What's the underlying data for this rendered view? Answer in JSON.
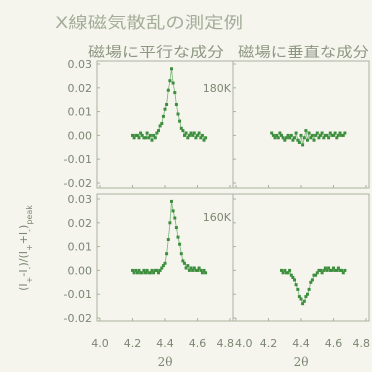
{
  "figure": {
    "title": "X線磁気散乱の測定例",
    "column_titles": [
      "磁場に平行な成分",
      "磁場に垂直な成分"
    ],
    "ylabel_parts": [
      "(I",
      "+",
      "-I",
      "-",
      ")/(I",
      "+",
      "+I",
      "-",
      ")",
      "peak"
    ],
    "colors": {
      "background": "#f5f5ee",
      "title": "#a3ad98",
      "subtitle": "#8d9782",
      "text": "#7b8772",
      "axes": "#aab39e",
      "marker": "#3d8f3d",
      "line": "#79b379"
    }
  },
  "chart_data": [
    {
      "type": "scatter",
      "label": "180K",
      "xlim": [
        4.0,
        4.8
      ],
      "ylim": [
        -0.02,
        0.03
      ],
      "grid": false,
      "x_ticks": [
        4.0,
        4.2,
        4.4,
        4.6,
        4.8
      ],
      "y_ticks": [
        0.03,
        0.02,
        0.01,
        0.0,
        -0.01,
        -0.02
      ],
      "y_tick_labels": [
        "0.03",
        "0.02",
        "0.01",
        "0.00",
        "-0.01",
        "-0.02"
      ],
      "x": [
        4.2,
        4.21,
        4.22,
        4.23,
        4.24,
        4.25,
        4.26,
        4.27,
        4.28,
        4.29,
        4.3,
        4.31,
        4.32,
        4.33,
        4.34,
        4.35,
        4.36,
        4.37,
        4.38,
        4.39,
        4.4,
        4.41,
        4.42,
        4.43,
        4.44,
        4.45,
        4.46,
        4.47,
        4.48,
        4.49,
        4.5,
        4.51,
        4.52,
        4.53,
        4.54,
        4.55,
        4.56,
        4.57,
        4.58,
        4.59,
        4.6,
        4.61,
        4.62,
        4.63,
        4.64,
        4.65
      ],
      "y": [
        0.0,
        -0.001,
        0.0,
        0.0,
        -0.001,
        0.001,
        0.0,
        -0.001,
        -0.001,
        0.001,
        -0.001,
        0.0,
        -0.002,
        0.0,
        -0.001,
        0.001,
        0.002,
        0.004,
        0.005,
        0.008,
        0.011,
        0.013,
        0.019,
        0.023,
        0.028,
        0.022,
        0.018,
        0.013,
        0.009,
        0.006,
        0.003,
        0.002,
        0.0,
        0.001,
        -0.001,
        0.0,
        0.001,
        0.0,
        0.001,
        -0.001,
        0.0,
        0.001,
        -0.001,
        0.0,
        -0.002,
        -0.001
      ]
    },
    {
      "type": "scatter",
      "xlim": [
        4.0,
        4.8
      ],
      "ylim": [
        -0.02,
        0.03
      ],
      "grid": false,
      "x_ticks": [
        4.0,
        4.2,
        4.4,
        4.6,
        4.8
      ],
      "y_ticks": [
        0.03,
        0.02,
        0.01,
        0.0,
        -0.01,
        -0.02
      ],
      "x": [
        4.22,
        4.23,
        4.24,
        4.25,
        4.26,
        4.27,
        4.28,
        4.29,
        4.3,
        4.31,
        4.32,
        4.33,
        4.34,
        4.35,
        4.36,
        4.37,
        4.38,
        4.39,
        4.4,
        4.41,
        4.42,
        4.43,
        4.44,
        4.45,
        4.46,
        4.47,
        4.48,
        4.49,
        4.5,
        4.51,
        4.52,
        4.53,
        4.54,
        4.55,
        4.56,
        4.57,
        4.58,
        4.59,
        4.6,
        4.61,
        4.62,
        4.63,
        4.64,
        4.65,
        4.66,
        4.67
      ],
      "y": [
        0.001,
        0.0,
        -0.001,
        0.0,
        -0.001,
        0.001,
        0.0,
        -0.001,
        -0.002,
        -0.001,
        0.0,
        -0.001,
        0.0,
        -0.002,
        -0.001,
        0.001,
        -0.002,
        -0.003,
        0.0,
        -0.004,
        -0.001,
        0.002,
        -0.002,
        0.001,
        -0.001,
        0.0,
        -0.002,
        0.0,
        0.001,
        -0.001,
        0.0,
        0.001,
        -0.001,
        0.0,
        0.0,
        -0.001,
        0.001,
        0.0,
        0.0,
        0.001,
        -0.001,
        0.0,
        0.001,
        0.0,
        0.0,
        0.001
      ]
    },
    {
      "type": "scatter",
      "label": "160K",
      "xlim": [
        4.0,
        4.8
      ],
      "ylim": [
        -0.02,
        0.03
      ],
      "grid": false,
      "x_ticks": [
        4.0,
        4.2,
        4.4,
        4.6,
        4.8
      ],
      "x_tick_labels": [
        "4.0",
        "4.2",
        "4.4",
        "4.6",
        "4.8"
      ],
      "xlabel": "2θ",
      "y_ticks": [
        0.03,
        0.02,
        0.01,
        0.0,
        -0.01,
        -0.02
      ],
      "y_tick_labels": [
        "0.03",
        "0.02",
        "0.01",
        "0.00",
        "-0.01",
        "-0.02"
      ],
      "x": [
        4.2,
        4.21,
        4.22,
        4.23,
        4.24,
        4.25,
        4.26,
        4.27,
        4.28,
        4.29,
        4.3,
        4.31,
        4.32,
        4.33,
        4.34,
        4.35,
        4.36,
        4.37,
        4.38,
        4.39,
        4.4,
        4.41,
        4.42,
        4.43,
        4.44,
        4.45,
        4.46,
        4.47,
        4.48,
        4.49,
        4.5,
        4.51,
        4.52,
        4.53,
        4.54,
        4.55,
        4.56,
        4.57,
        4.58,
        4.59,
        4.6,
        4.61,
        4.62,
        4.63,
        4.64,
        4.65
      ],
      "y": [
        0.0,
        -0.001,
        0.0,
        -0.001,
        0.0,
        -0.001,
        -0.001,
        0.0,
        -0.001,
        0.0,
        -0.001,
        -0.001,
        0.0,
        -0.001,
        0.0,
        0.0,
        -0.001,
        0.0,
        0.001,
        0.002,
        0.003,
        0.007,
        0.013,
        0.02,
        0.029,
        0.025,
        0.022,
        0.018,
        0.014,
        0.011,
        0.007,
        0.004,
        0.003,
        0.001,
        0.002,
        0.0,
        0.001,
        0.0,
        0.001,
        0.0,
        0.0,
        0.001,
        0.0,
        -0.001,
        0.0,
        -0.001
      ]
    },
    {
      "type": "scatter",
      "xlim": [
        4.0,
        4.8
      ],
      "ylim": [
        -0.02,
        0.03
      ],
      "grid": false,
      "x_ticks": [
        4.0,
        4.2,
        4.4,
        4.6,
        4.8
      ],
      "x_tick_labels": [
        "4.0",
        "4.2",
        "4.4",
        "4.6",
        "4.8"
      ],
      "xlabel": "2θ",
      "y_ticks": [
        0.03,
        0.02,
        0.01,
        0.0,
        -0.01,
        -0.02
      ],
      "x": [
        4.28,
        4.29,
        4.3,
        4.31,
        4.32,
        4.33,
        4.34,
        4.35,
        4.36,
        4.37,
        4.38,
        4.39,
        4.4,
        4.41,
        4.42,
        4.43,
        4.44,
        4.45,
        4.46,
        4.47,
        4.48,
        4.49,
        4.5,
        4.51,
        4.52,
        4.53,
        4.54,
        4.55,
        4.56,
        4.57,
        4.58,
        4.59,
        4.6,
        4.61,
        4.62,
        4.63,
        4.64,
        4.65,
        4.66,
        4.67
      ],
      "y": [
        0.0,
        -0.001,
        0.0,
        -0.001,
        -0.001,
        0.0,
        -0.002,
        -0.003,
        -0.004,
        -0.006,
        -0.008,
        -0.011,
        -0.012,
        -0.014,
        -0.013,
        -0.011,
        -0.01,
        -0.008,
        -0.005,
        -0.004,
        -0.002,
        -0.002,
        -0.001,
        0.0,
        0.0,
        -0.001,
        0.0,
        0.001,
        0.0,
        0.001,
        0.0,
        0.0,
        0.001,
        0.0,
        0.0,
        0.001,
        0.0,
        0.0,
        -0.001,
        0.0
      ]
    }
  ]
}
